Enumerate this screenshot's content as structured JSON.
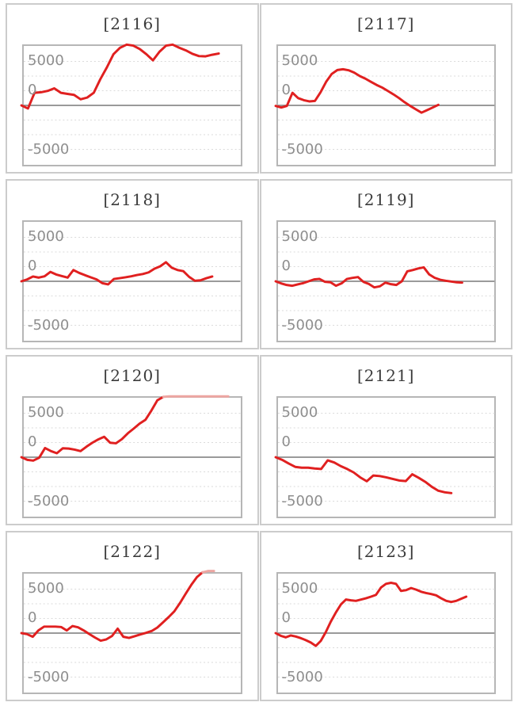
{
  "colors": {
    "background": "#ffffff",
    "panel_border": "#cccccc",
    "plot_border": "#b6b6b6",
    "grid_dashed": "#dadada",
    "zero_line": "#9a9a9a",
    "title_text": "#3b3b3b",
    "axis_text": "#8e8e8e",
    "line_red": "#e02020",
    "line_red_overflow": "#eda6a2"
  },
  "overflow_threshold": 6850,
  "chart_data": [
    {
      "type": "line",
      "title": "[2116]",
      "yticks": [
        "5000",
        "0",
        "-5000"
      ],
      "ylim": [
        -6667,
        6667
      ],
      "grid_interval": 1667,
      "x_end_fraction": 0.9,
      "values": [
        0,
        -360,
        1430,
        1490,
        1640,
        1940,
        1430,
        1310,
        1190,
        690,
        890,
        1430,
        2980,
        4320,
        5810,
        6550,
        6910,
        6790,
        6400,
        5810,
        5120,
        6100,
        6790,
        6910,
        6550,
        6250,
        5860,
        5600,
        5570,
        5750,
        5890
      ]
    },
    {
      "type": "line",
      "title": "[2117]",
      "yticks": [
        "5000",
        "0",
        "-5000"
      ],
      "ylim": [
        -6667,
        6667
      ],
      "grid_interval": 1667,
      "x_end_fraction": 0.74,
      "values": [
        -60,
        -240,
        -60,
        1430,
        830,
        600,
        450,
        510,
        1490,
        2680,
        3570,
        4020,
        4110,
        3990,
        3720,
        3330,
        3040,
        2680,
        2320,
        2020,
        1640,
        1250,
        830,
        360,
        -60,
        -450,
        -830,
        -540,
        -240,
        60
      ]
    },
    {
      "type": "line",
      "title": "[2118]",
      "yticks": [
        "5000",
        "0",
        "-5000"
      ],
      "ylim": [
        -6667,
        6667
      ],
      "grid_interval": 1667,
      "x_end_fraction": 0.87,
      "values": [
        0,
        210,
        540,
        420,
        570,
        1070,
        770,
        600,
        420,
        1280,
        950,
        690,
        450,
        210,
        -210,
        -360,
        270,
        360,
        450,
        570,
        710,
        830,
        1010,
        1430,
        1700,
        2170,
        1550,
        1280,
        1160,
        510,
        60,
        120,
        360,
        540
      ]
    },
    {
      "type": "line",
      "title": "[2119]",
      "yticks": [
        "5000",
        "0",
        "-5000"
      ],
      "ylim": [
        -6667,
        6667
      ],
      "grid_interval": 1667,
      "x_end_fraction": 0.85,
      "values": [
        0,
        -240,
        -420,
        -510,
        -360,
        -210,
        0,
        210,
        270,
        -60,
        -120,
        -510,
        -240,
        270,
        390,
        480,
        -60,
        -300,
        -690,
        -570,
        -150,
        -330,
        -420,
        0,
        1130,
        1280,
        1460,
        1580,
        770,
        390,
        180,
        60,
        -30,
        -120,
        -150
      ]
    },
    {
      "type": "line",
      "title": "[2120]",
      "yticks": [
        "5000",
        "0",
        "-5000"
      ],
      "ylim": [
        -6667,
        6667
      ],
      "grid_interval": 1667,
      "x_end_fraction": 0.944,
      "values": [
        0,
        -300,
        -390,
        -60,
        1040,
        690,
        450,
        1010,
        980,
        860,
        690,
        1190,
        1640,
        2020,
        2320,
        1640,
        1580,
        2050,
        2710,
        3250,
        3810,
        4260,
        5300,
        6460,
        6850,
        6910,
        6910,
        6910,
        6910,
        6910,
        6910,
        6910,
        6910,
        6910,
        6910,
        6910
      ]
    },
    {
      "type": "line",
      "title": "[2121]",
      "yticks": [
        "5000",
        "0",
        "-5000"
      ],
      "ylim": [
        -6667,
        6667
      ],
      "grid_interval": 1667,
      "x_end_fraction": 0.8,
      "values": [
        0,
        -300,
        -710,
        -1100,
        -1190,
        -1190,
        -1280,
        -1340,
        -360,
        -600,
        -1010,
        -1340,
        -1730,
        -2290,
        -2740,
        -2080,
        -2140,
        -2290,
        -2470,
        -2650,
        -2710,
        -1940,
        -2350,
        -2800,
        -3360,
        -3810,
        -3990,
        -4080
      ]
    },
    {
      "type": "line",
      "title": "[2122]",
      "yticks": [
        "5000",
        "0",
        "-5000"
      ],
      "ylim": [
        -6667,
        6667
      ],
      "grid_interval": 1667,
      "x_end_fraction": 0.878,
      "values": [
        0,
        -120,
        -420,
        300,
        740,
        740,
        740,
        690,
        300,
        800,
        660,
        300,
        -120,
        -510,
        -860,
        -710,
        -330,
        510,
        -420,
        -540,
        -360,
        -150,
        30,
        240,
        630,
        1220,
        1820,
        2470,
        3420,
        4470,
        5480,
        6370,
        6910,
        7060,
        7060
      ]
    },
    {
      "type": "line",
      "title": "[2123]",
      "yticks": [
        "5000",
        "0",
        "-5000"
      ],
      "ylim": [
        -6667,
        6667
      ],
      "grid_interval": 1667,
      "x_end_fraction": 0.869,
      "values": [
        0,
        -300,
        -480,
        -270,
        -390,
        -570,
        -800,
        -1070,
        -1460,
        -890,
        120,
        1310,
        2350,
        3250,
        3810,
        3720,
        3660,
        3810,
        3960,
        4140,
        4350,
        5180,
        5600,
        5720,
        5600,
        4790,
        4880,
        5120,
        4940,
        4700,
        4550,
        4440,
        4290,
        3960,
        3660,
        3540,
        3660,
        3900,
        4140
      ]
    }
  ]
}
